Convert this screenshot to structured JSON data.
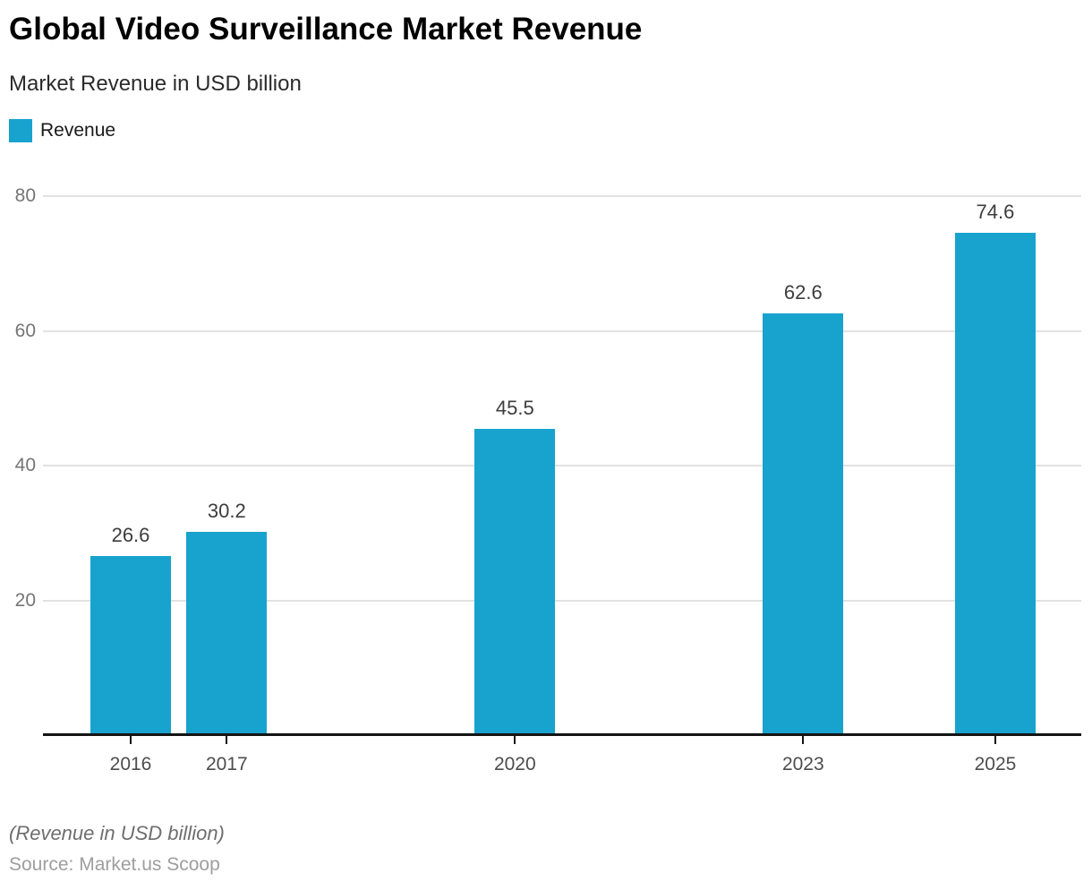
{
  "header": {
    "title": "Global Video Surveillance Market Revenue",
    "subtitle": "Market Revenue in USD billion"
  },
  "legend": {
    "position": "top-left",
    "items": [
      {
        "label": "Revenue",
        "color": "#18a2ce"
      }
    ]
  },
  "chart_data": {
    "type": "bar",
    "title": "Global Video Surveillance Market Revenue",
    "subtitle": "Market Revenue in USD billion",
    "categories": [
      "2016",
      "2017",
      "2020",
      "2023",
      "2025"
    ],
    "series": [
      {
        "name": "Revenue",
        "values": [
          26.6,
          30.2,
          45.5,
          62.6,
          74.6
        ]
      }
    ],
    "xlabel": "",
    "ylabel": "",
    "yticks": [
      20,
      40,
      60,
      80
    ],
    "ylim": [
      0,
      83
    ],
    "x_axis_type": "linear-years",
    "grid": "horizontal",
    "value_labels": true,
    "legend_position": "top-left",
    "bar_color": "#18a2ce",
    "gridline_color": "#e2e2e2",
    "axis_color": "#141414"
  },
  "footer": {
    "note": "(Revenue in USD billion)",
    "source": "Source: Market.us Scoop"
  }
}
